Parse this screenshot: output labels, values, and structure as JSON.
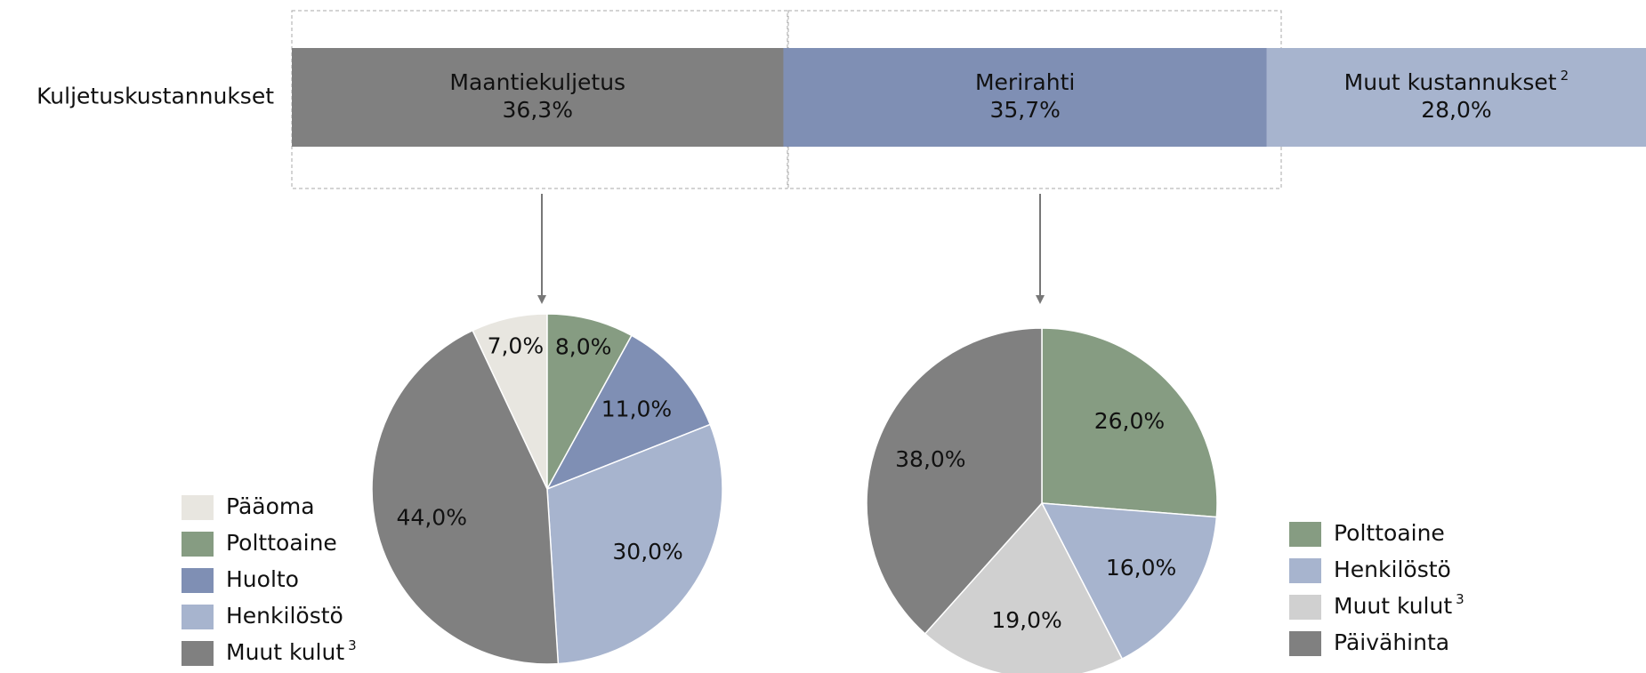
{
  "chart_data": [
    {
      "type": "bar",
      "orientation": "horizontal",
      "stacked": true,
      "categories": [
        "Kuljetuskustannukset"
      ],
      "xlim": [
        0,
        100
      ],
      "series": [
        {
          "name": "Maantiekuljetus",
          "color": "#808080",
          "label_color": "#ffffff",
          "values": [
            36.3
          ],
          "value_labels": [
            "36,3%"
          ]
        },
        {
          "name": "Merirahti",
          "color": "#7f8fb4",
          "label_color": "#ffffff",
          "values": [
            35.7
          ],
          "value_labels": [
            "35,7%"
          ]
        },
        {
          "name": "Muut kustannukset",
          "name_note": "2",
          "color": "#a7b4ce",
          "label_color": "#222222",
          "values": [
            28.0
          ],
          "value_labels": [
            "28,0%"
          ]
        }
      ]
    },
    {
      "type": "pie",
      "categories": [
        "Pääoma",
        "Polttoaine",
        "Huolto",
        "Henkilöstö",
        "Muut kulut"
      ],
      "category_notes": {
        "4": "3"
      },
      "values": [
        7,
        8,
        11,
        30,
        44
      ],
      "value_labels": [
        "7,0%",
        "8,0%",
        "11,0%",
        "30,0%",
        "44,0%"
      ],
      "colors": [
        "#e8e6e0",
        "#869c82",
        "#7f8fb4",
        "#a7b4ce",
        "#808080"
      ],
      "label_colors": [
        "#111111",
        "#ffffff",
        "#ffffff",
        "#111111",
        "#ffffff"
      ]
    },
    {
      "type": "pie",
      "categories": [
        "Polttoaine",
        "Henkilöstö",
        "Muut kulut",
        "Päivähinta"
      ],
      "category_notes": {
        "2": "3"
      },
      "values": [
        26,
        16,
        19,
        38
      ],
      "value_labels": [
        "26,0%",
        "16,0%",
        "19,0%",
        "38,0%"
      ],
      "colors": [
        "#869c82",
        "#a7b4ce",
        "#d0d0d0",
        "#808080"
      ],
      "label_colors": [
        "#ffffff",
        "#111111",
        "#111111",
        "#ffffff"
      ]
    }
  ]
}
